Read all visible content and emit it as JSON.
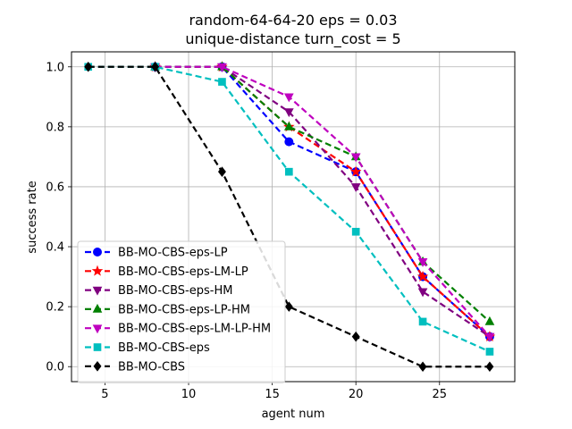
{
  "chart_data": {
    "type": "line",
    "title_line1": "random-64-64-20    eps = 0.03",
    "title_line2": "unique-distance    turn_cost = 5",
    "xlabel": "agent num",
    "ylabel": "success rate",
    "xlim": [
      3,
      29.5
    ],
    "ylim": [
      -0.05,
      1.05
    ],
    "xticks": [
      5,
      10,
      15,
      20,
      25
    ],
    "yticks": [
      0.0,
      0.2,
      0.4,
      0.6,
      0.8,
      1.0
    ],
    "xtick_labels": [
      "5",
      "10",
      "15",
      "20",
      "25"
    ],
    "ytick_labels": [
      "0.0",
      "0.2",
      "0.4",
      "0.6",
      "0.8",
      "1.0"
    ],
    "grid": true,
    "legend_position": "lower-left",
    "series": [
      {
        "name": "BB-MO-CBS-eps-LP",
        "color": "#0000ff",
        "marker": "circle",
        "x": [
          8,
          12,
          16,
          20,
          24,
          28
        ],
        "y": [
          1.0,
          1.0,
          0.75,
          0.65,
          0.3,
          0.1
        ]
      },
      {
        "name": "BB-MO-CBS-eps-LM-LP",
        "color": "#ff0000",
        "marker": "star",
        "x": [
          8,
          12,
          16,
          20,
          24,
          28
        ],
        "y": [
          1.0,
          1.0,
          0.8,
          0.65,
          0.3,
          0.1
        ]
      },
      {
        "name": "BB-MO-CBS-eps-HM",
        "color": "#800080",
        "marker": "triangle-down",
        "x": [
          8,
          12,
          16,
          20,
          24,
          28
        ],
        "y": [
          1.0,
          1.0,
          0.85,
          0.6,
          0.25,
          0.1
        ]
      },
      {
        "name": "BB-MO-CBS-eps-LP-HM",
        "color": "#008000",
        "marker": "triangle-up",
        "x": [
          8,
          12,
          16,
          20,
          24,
          28
        ],
        "y": [
          1.0,
          1.0,
          0.8,
          0.7,
          0.35,
          0.15
        ]
      },
      {
        "name": "BB-MO-CBS-eps-LM-LP-HM",
        "color": "#bf00bf",
        "marker": "triangle-down",
        "x": [
          8,
          12,
          16,
          20,
          24,
          28
        ],
        "y": [
          1.0,
          1.0,
          0.9,
          0.7,
          0.35,
          0.1
        ]
      },
      {
        "name": "BB-MO-CBS-eps",
        "color": "#00bfbf",
        "marker": "square",
        "x": [
          4,
          8,
          12,
          16,
          20,
          24,
          28
        ],
        "y": [
          1.0,
          1.0,
          0.95,
          0.65,
          0.45,
          0.15,
          0.05
        ]
      },
      {
        "name": "BB-MO-CBS",
        "color": "#000000",
        "marker": "diamond",
        "x": [
          4,
          8,
          12,
          16,
          20,
          24,
          28
        ],
        "y": [
          1.0,
          1.0,
          0.65,
          0.2,
          0.1,
          0.0,
          0.0
        ]
      }
    ]
  }
}
